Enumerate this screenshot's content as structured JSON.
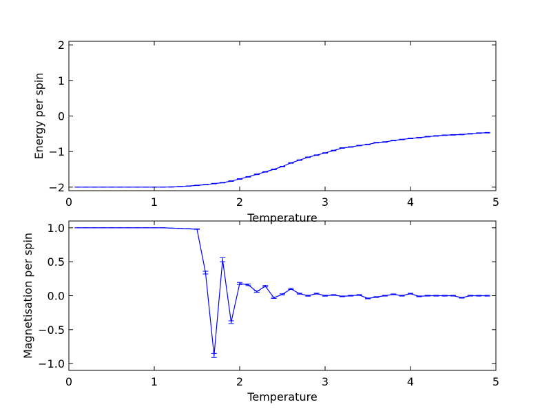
{
  "chart_data": [
    {
      "type": "line",
      "xlabel": "Temperature",
      "ylabel": "Energy per spin",
      "xlim": [
        0,
        5
      ],
      "ylim": [
        -2.1,
        2.1
      ],
      "xticks": [
        "0",
        "1",
        "2",
        "3",
        "4",
        "5"
      ],
      "yticks": [
        "−2",
        "−1",
        "0",
        "1",
        "2"
      ],
      "grid": false,
      "error_bars": true,
      "series": [
        {
          "color": "#0000ff",
          "x": [
            0.1,
            0.2,
            0.3,
            0.4,
            0.5,
            0.6,
            0.7,
            0.8,
            0.9,
            1.0,
            1.1,
            1.2,
            1.3,
            1.4,
            1.5,
            1.6,
            1.7,
            1.8,
            1.9,
            2.0,
            2.1,
            2.2,
            2.3,
            2.4,
            2.5,
            2.6,
            2.7,
            2.8,
            2.9,
            3.0,
            3.1,
            3.2,
            3.3,
            3.4,
            3.5,
            3.6,
            3.7,
            3.8,
            3.9,
            4.0,
            4.1,
            4.2,
            4.3,
            4.4,
            4.5,
            4.6,
            4.7,
            4.8,
            4.9
          ],
          "y": [
            -2.0,
            -2.0,
            -2.0,
            -2.0,
            -2.0,
            -2.0,
            -2.0,
            -2.0,
            -2.0,
            -2.0,
            -2.0,
            -1.995,
            -1.985,
            -1.97,
            -1.95,
            -1.93,
            -1.9,
            -1.875,
            -1.83,
            -1.77,
            -1.71,
            -1.64,
            -1.57,
            -1.5,
            -1.42,
            -1.32,
            -1.24,
            -1.16,
            -1.1,
            -1.04,
            -0.97,
            -0.9,
            -0.87,
            -0.83,
            -0.8,
            -0.75,
            -0.73,
            -0.69,
            -0.66,
            -0.63,
            -0.61,
            -0.58,
            -0.56,
            -0.54,
            -0.53,
            -0.52,
            -0.5,
            -0.48,
            -0.47
          ],
          "err": [
            0,
            0,
            0,
            0,
            0,
            0,
            0,
            0,
            0,
            0,
            0,
            0.005,
            0.005,
            0.006,
            0.006,
            0.006,
            0.007,
            0.007,
            0.008,
            0.008,
            0.008,
            0.008,
            0.008,
            0.008,
            0.008,
            0.008,
            0.008,
            0.008,
            0.008,
            0.008,
            0.008,
            0.008,
            0.008,
            0.008,
            0.008,
            0.008,
            0.008,
            0.008,
            0.008,
            0.008,
            0.008,
            0.008,
            0.008,
            0.008,
            0.008,
            0.008,
            0.008,
            0.008,
            0.008
          ]
        }
      ]
    },
    {
      "type": "line",
      "xlabel": "Temperature",
      "ylabel": "Magnetisation per spin",
      "xlim": [
        0,
        5
      ],
      "ylim": [
        -1.1,
        1.1
      ],
      "xticks": [
        "0",
        "1",
        "2",
        "3",
        "4",
        "5"
      ],
      "yticks": [
        "−1.0",
        "−0.5",
        "0.0",
        "0.5",
        "1.0"
      ],
      "grid": false,
      "error_bars": true,
      "series": [
        {
          "color": "#0000ff",
          "x": [
            0.1,
            0.2,
            0.3,
            0.4,
            0.5,
            0.6,
            0.7,
            0.8,
            0.9,
            1.0,
            1.1,
            1.2,
            1.3,
            1.4,
            1.5,
            1.6,
            1.7,
            1.8,
            1.9,
            2.0,
            2.1,
            2.2,
            2.3,
            2.4,
            2.5,
            2.6,
            2.7,
            2.8,
            2.9,
            3.0,
            3.1,
            3.2,
            3.3,
            3.4,
            3.5,
            3.6,
            3.7,
            3.8,
            3.9,
            4.0,
            4.1,
            4.2,
            4.3,
            4.4,
            4.5,
            4.6,
            4.7,
            4.8,
            4.9
          ],
          "y": [
            1.0,
            1.0,
            1.0,
            1.0,
            1.0,
            1.0,
            1.0,
            1.0,
            1.0,
            1.0,
            1.0,
            0.995,
            0.99,
            0.985,
            0.98,
            0.34,
            -0.88,
            0.53,
            -0.39,
            0.18,
            0.16,
            0.06,
            0.14,
            -0.03,
            0.02,
            0.1,
            0.03,
            0.0,
            0.03,
            0.0,
            0.01,
            -0.01,
            0.0,
            0.01,
            -0.04,
            -0.02,
            0.0,
            0.02,
            0.0,
            0.03,
            -0.01,
            0.0,
            0.0,
            0.0,
            0.0,
            -0.03,
            0.0,
            0.0,
            0.0
          ],
          "err": [
            0,
            0,
            0,
            0,
            0,
            0,
            0,
            0,
            0,
            0,
            0,
            0,
            0,
            0.002,
            0.003,
            0.02,
            0.03,
            0.03,
            0.02,
            0.015,
            0.012,
            0.01,
            0.01,
            0.01,
            0.008,
            0.008,
            0.007,
            0.007,
            0.007,
            0.007,
            0.006,
            0.006,
            0.006,
            0.006,
            0.006,
            0.006,
            0.006,
            0.006,
            0.006,
            0.006,
            0.006,
            0.006,
            0.006,
            0.006,
            0.006,
            0.006,
            0.006,
            0.006,
            0.006
          ]
        }
      ]
    }
  ]
}
